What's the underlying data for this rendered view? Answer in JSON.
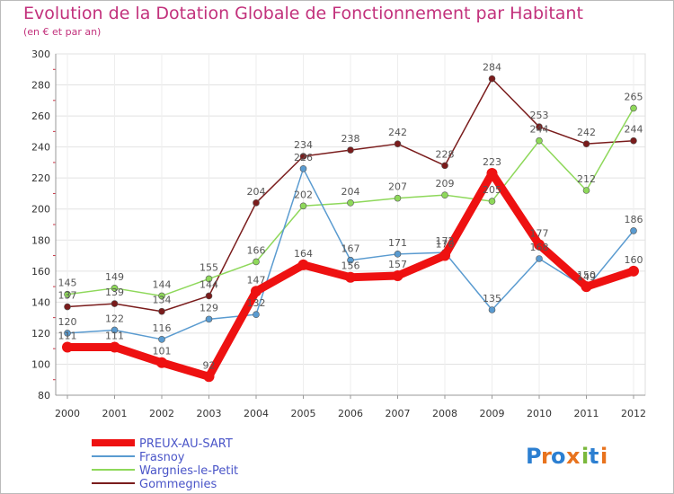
{
  "header": {
    "title": "Evolution de la Dotation Globale de Fonctionnement par Habitant",
    "subtitle": "(en € et par an)"
  },
  "logo": {
    "text": "Proxiti",
    "letters": [
      "P",
      "r",
      "o",
      "x",
      "i",
      "t",
      "i"
    ],
    "colors": [
      "#2c7fd1",
      "#e8731e",
      "#2c7fd1",
      "#e8731e",
      "#7ab83c",
      "#2c7fd1",
      "#e8731e"
    ]
  },
  "chart_data": {
    "type": "line",
    "title": "Evolution de la Dotation Globale de Fonctionnement par Habitant",
    "subtitle": "(en € et par an)",
    "xlabel": "",
    "ylabel": "",
    "x": [
      "2000",
      "2001",
      "2002",
      "2003",
      "2004",
      "2005",
      "2006",
      "2007",
      "2008",
      "2009",
      "2010",
      "2011",
      "2012"
    ],
    "ylim": [
      80,
      300
    ],
    "yticks": [
      80,
      100,
      120,
      140,
      160,
      180,
      200,
      220,
      240,
      260,
      280,
      300
    ],
    "grid": true,
    "legend": "bottom-left",
    "series": [
      {
        "name": "PREUX-AU-SART",
        "color": "#ee1111",
        "values": [
          111,
          111,
          101,
          92,
          147,
          164,
          156,
          157,
          170,
          223,
          177,
          150,
          160
        ]
      },
      {
        "name": "Frasnoy",
        "color": "#5a9bd0",
        "values": [
          120,
          122,
          116,
          129,
          132,
          226,
          167,
          171,
          172,
          135,
          168,
          149,
          186
        ]
      },
      {
        "name": "Wargnies-le-Petit",
        "color": "#8ed85a",
        "values": [
          145,
          149,
          144,
          155,
          166,
          202,
          204,
          207,
          209,
          205,
          244,
          212,
          265
        ]
      },
      {
        "name": "Gommegnies",
        "color": "#7a1c1c",
        "values": [
          137,
          139,
          134,
          144,
          204,
          234,
          238,
          242,
          228,
          284,
          253,
          242,
          244
        ]
      }
    ],
    "point_labels": [
      [
        "111",
        "111",
        "101",
        "92",
        "147",
        "164",
        "156",
        "157",
        "170",
        "223",
        "177",
        "150",
        "160"
      ],
      [
        "120",
        "122",
        "116",
        "129",
        "132",
        "226",
        "167",
        "171",
        "172",
        "135",
        "168",
        "149",
        "186"
      ],
      [
        "145",
        "149",
        "144",
        "155",
        "166",
        "202",
        "204",
        "207",
        "209",
        "205",
        "244",
        "212",
        "265"
      ],
      [
        "137",
        "139",
        "134",
        "144",
        "204",
        "234",
        "238",
        "242",
        "228",
        "284",
        "253",
        "242",
        "244"
      ]
    ]
  }
}
